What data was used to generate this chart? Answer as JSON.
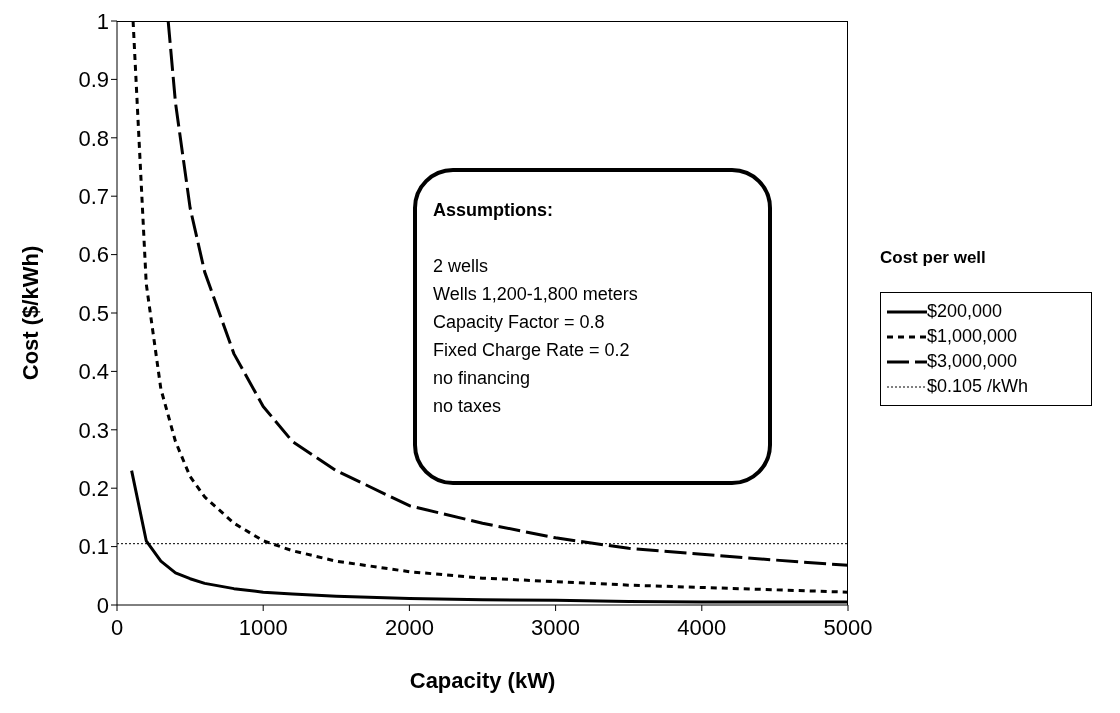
{
  "chart_data": {
    "type": "line",
    "xlabel": "Capacity (kW)",
    "ylabel": "Cost ($/kWh)",
    "legend_title": "Cost per well",
    "legend": "right",
    "marker": "none",
    "xlim": [
      0,
      5000
    ],
    "xticks": [
      0,
      1000,
      2000,
      3000,
      4000,
      5000
    ],
    "ylim": [
      0,
      1
    ],
    "yticks": [
      0,
      0.1,
      0.2,
      0.3,
      0.4,
      0.5,
      0.6,
      0.7,
      0.8,
      0.9,
      1
    ],
    "series": [
      {
        "name": "$200,000",
        "color": "#000000",
        "line_style": "solid",
        "x": [
          100,
          200,
          300,
          400,
          500,
          600,
          800,
          1000,
          1200,
          1500,
          2000,
          2500,
          3000,
          3500,
          4000,
          4500,
          5000
        ],
        "values": [
          0.23,
          0.11,
          0.075,
          0.055,
          0.045,
          0.037,
          0.028,
          0.022,
          0.019,
          0.015,
          0.011,
          0.009,
          0.008,
          0.006,
          0.005,
          0.005,
          0.005
        ]
      },
      {
        "name": "$1,000,000",
        "color": "#000000",
        "line_style": "dotted",
        "x": [
          110,
          200,
          300,
          400,
          500,
          600,
          800,
          1000,
          1200,
          1500,
          2000,
          2500,
          3000,
          3500,
          4000,
          4500,
          5000
        ],
        "values": [
          1.0,
          0.55,
          0.37,
          0.28,
          0.22,
          0.185,
          0.14,
          0.11,
          0.093,
          0.075,
          0.057,
          0.046,
          0.04,
          0.034,
          0.03,
          0.026,
          0.022
        ]
      },
      {
        "name": "$3,000,000",
        "color": "#000000",
        "line_style": "dashed",
        "x": [
          350,
          400,
          500,
          600,
          800,
          1000,
          1200,
          1500,
          2000,
          2500,
          3000,
          3500,
          4000,
          4500,
          5000
        ],
        "values": [
          1.0,
          0.86,
          0.68,
          0.57,
          0.43,
          0.34,
          0.28,
          0.23,
          0.17,
          0.14,
          0.115,
          0.097,
          0.087,
          0.077,
          0.068
        ]
      }
    ],
    "ref_lines": [
      {
        "axis": "y",
        "value": 0.105,
        "label": "$0.105 /kWh",
        "color": "#000000",
        "line_style": "dotted"
      }
    ],
    "annotations": [
      "Assumptions:",
      "2 wells",
      "Wells 1,200-1,800 meters",
      "Capacity Factor = 0.8",
      "Fixed Charge Rate  = 0.2",
      "no financing",
      "no taxes"
    ]
  }
}
